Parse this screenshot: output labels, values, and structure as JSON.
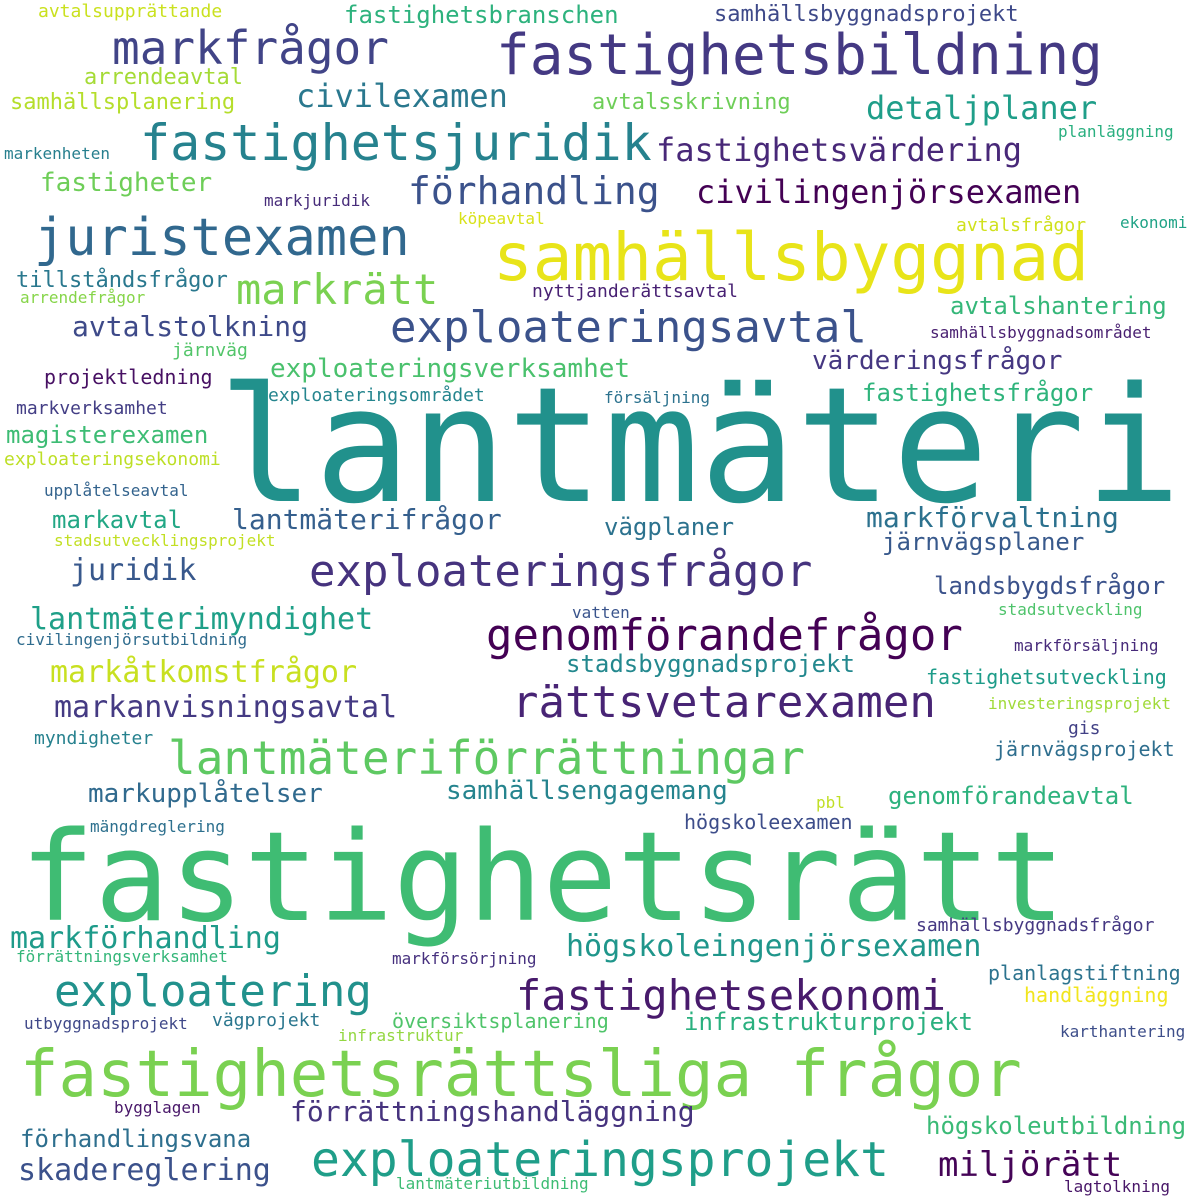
{
  "words": [
    {
      "text": "lantmäteri",
      "color": "#21918c"
    },
    {
      "text": "fastighetsrätt",
      "color": "#3fbc73"
    },
    {
      "text": "samhällsbyggnad",
      "color": "#e8e419"
    },
    {
      "text": "fastighetsbildning",
      "color": "#443983"
    },
    {
      "text": "fastighetsrättsliga frågor",
      "color": "#7ad151"
    },
    {
      "text": "exploateringsavtal",
      "color": "#3b528b"
    },
    {
      "text": "juristexamen",
      "color": "#31688e"
    },
    {
      "text": "fastighetsjuridik",
      "color": "#26828e"
    },
    {
      "text": "markfrågor",
      "color": "#414487"
    },
    {
      "text": "exploateringsfrågor",
      "color": "#46337e"
    },
    {
      "text": "lantmäteriförrättningar",
      "color": "#5ec962"
    },
    {
      "text": "genomförandefrågor",
      "color": "#440154"
    },
    {
      "text": "rättsvetarexamen",
      "color": "#482475"
    },
    {
      "text": "exploateringsprojekt",
      "color": "#1f9e89"
    },
    {
      "text": "exploatering",
      "color": "#21918c"
    },
    {
      "text": "fastighetsekonomi",
      "color": "#481a6c"
    },
    {
      "text": "förhandling",
      "color": "#3b528b"
    },
    {
      "text": "markrätt",
      "color": "#7ad151"
    },
    {
      "text": "civilingenjörsexamen",
      "color": "#440154"
    },
    {
      "text": "fastighetsvärdering",
      "color": "#482878"
    },
    {
      "text": "detaljplaner",
      "color": "#1f9e89"
    },
    {
      "text": "civilexamen",
      "color": "#2a788e"
    },
    {
      "text": "fastighetsbranschen",
      "color": "#2db27d"
    },
    {
      "text": "samhällsbyggnadsprojekt",
      "color": "#3e4989"
    },
    {
      "text": "avtalsskrivning",
      "color": "#6ece58"
    },
    {
      "text": "arrendeavtal",
      "color": "#a5db36"
    },
    {
      "text": "samhällsplanering",
      "color": "#b5de2b"
    },
    {
      "text": "avtalsupprättande",
      "color": "#cae11f"
    },
    {
      "text": "fastigheter",
      "color": "#6ece58"
    },
    {
      "text": "markenheten",
      "color": "#277f8e"
    },
    {
      "text": "markjuridik",
      "color": "#472c7a"
    },
    {
      "text": "köpeavtal",
      "color": "#d8e219"
    },
    {
      "text": "avtalsfrågor",
      "color": "#d0e11c"
    },
    {
      "text": "ekonomi",
      "color": "#20a386"
    },
    {
      "text": "planläggning",
      "color": "#29af7f"
    },
    {
      "text": "tillståndsfrågor",
      "color": "#2a788e"
    },
    {
      "text": "arrendefrågor",
      "color": "#86d549"
    },
    {
      "text": "nyttjanderättsavtal",
      "color": "#482173"
    },
    {
      "text": "avtalshantering",
      "color": "#35b779"
    },
    {
      "text": "avtalstolkning",
      "color": "#3e4a89"
    },
    {
      "text": "samhällsbyggnadsområdet",
      "color": "#481f70"
    },
    {
      "text": "järnväg",
      "color": "#52c569"
    },
    {
      "text": "exploateringsverksamhet",
      "color": "#4ac16d"
    },
    {
      "text": "värderingsfrågor",
      "color": "#453781"
    },
    {
      "text": "projektledning",
      "color": "#471063"
    },
    {
      "text": "fastighetsfrågor",
      "color": "#2fb47c"
    },
    {
      "text": "markverksamhet",
      "color": "#433e85"
    },
    {
      "text": "exploateringsområdet",
      "color": "#25858e"
    },
    {
      "text": "försäljning",
      "color": "#2c728e"
    },
    {
      "text": "magisterexamen",
      "color": "#3dbc74"
    },
    {
      "text": "exploateringsekonomi",
      "color": "#bddf26"
    },
    {
      "text": "upplåtelseavtal",
      "color": "#33638d"
    },
    {
      "text": "markavtal",
      "color": "#22a785"
    },
    {
      "text": "lantmäterifrågor",
      "color": "#355f8d"
    },
    {
      "text": "vägplaner",
      "color": "#2c728e"
    },
    {
      "text": "markförvaltning",
      "color": "#2c718e"
    },
    {
      "text": "stadsutvecklingsprojekt",
      "color": "#c2df23"
    },
    {
      "text": "järnvägsplaner",
      "color": "#38598c"
    },
    {
      "text": "juridik",
      "color": "#38588c"
    },
    {
      "text": "landsbygdsfrågor",
      "color": "#3b528b"
    },
    {
      "text": "lantmäterimyndighet",
      "color": "#1fa088"
    },
    {
      "text": "vatten",
      "color": "#3a548c"
    },
    {
      "text": "stadsutveckling",
      "color": "#4ec36b"
    },
    {
      "text": "civilingenjörsutbildning",
      "color": "#2f6c8e"
    },
    {
      "text": "markförsäljning",
      "color": "#472a7a"
    },
    {
      "text": "markåtkomstfrågor",
      "color": "#c8e020"
    },
    {
      "text": "stadsbyggnadsprojekt",
      "color": "#23888e"
    },
    {
      "text": "fastighetsutveckling",
      "color": "#1e9c89"
    },
    {
      "text": "markanvisningsavtal",
      "color": "#443a83"
    },
    {
      "text": "investeringsprojekt",
      "color": "#a0da39"
    },
    {
      "text": "gis",
      "color": "#424186"
    },
    {
      "text": "myndigheter",
      "color": "#26818e"
    },
    {
      "text": "järnvägsprojekt",
      "color": "#2e6e8e"
    },
    {
      "text": "markupplåtelser",
      "color": "#306a8e"
    },
    {
      "text": "samhällsengagemang",
      "color": "#25848e"
    },
    {
      "text": "pbl",
      "color": "#c0df25"
    },
    {
      "text": "genomförandeavtal",
      "color": "#2db27d"
    },
    {
      "text": "högskoleexamen",
      "color": "#3d4d8a"
    },
    {
      "text": "mängdreglering",
      "color": "#2d708e"
    },
    {
      "text": "samhällsbyggnadsfrågor",
      "color": "#453882"
    },
    {
      "text": "markförhandling",
      "color": "#1e9b8a"
    },
    {
      "text": "högskoleingenjörsexamen",
      "color": "#1f968b"
    },
    {
      "text": "förrättningsverksamhet",
      "color": "#34b679"
    },
    {
      "text": "markförsörjning",
      "color": "#46307e"
    },
    {
      "text": "planlagstiftning",
      "color": "#2c738e"
    },
    {
      "text": "handläggning",
      "color": "#f1e51d"
    },
    {
      "text": "utbyggnadsprojekt",
      "color": "#3f4889"
    },
    {
      "text": "vägprojekt",
      "color": "#2a768e"
    },
    {
      "text": "översiktsplanering",
      "color": "#4fc46a"
    },
    {
      "text": "infrastrukturprojekt",
      "color": "#2ab07f"
    },
    {
      "text": "infrastruktur",
      "color": "#93d741"
    },
    {
      "text": "karthantering",
      "color": "#3d4e8a"
    },
    {
      "text": "bygglagen",
      "color": "#481769"
    },
    {
      "text": "förrättningshandläggning",
      "color": "#46337e"
    },
    {
      "text": "förhandlingsvana",
      "color": "#2e6f8e"
    },
    {
      "text": "högskoleutbildning",
      "color": "#3aba76"
    },
    {
      "text": "skadereglering",
      "color": "#3b518b"
    },
    {
      "text": "miljörätt",
      "color": "#450457"
    },
    {
      "text": "lantmäteriutbildning",
      "color": "#3dbc74"
    },
    {
      "text": "lagtolkning",
      "color": "#481668"
    }
  ]
}
